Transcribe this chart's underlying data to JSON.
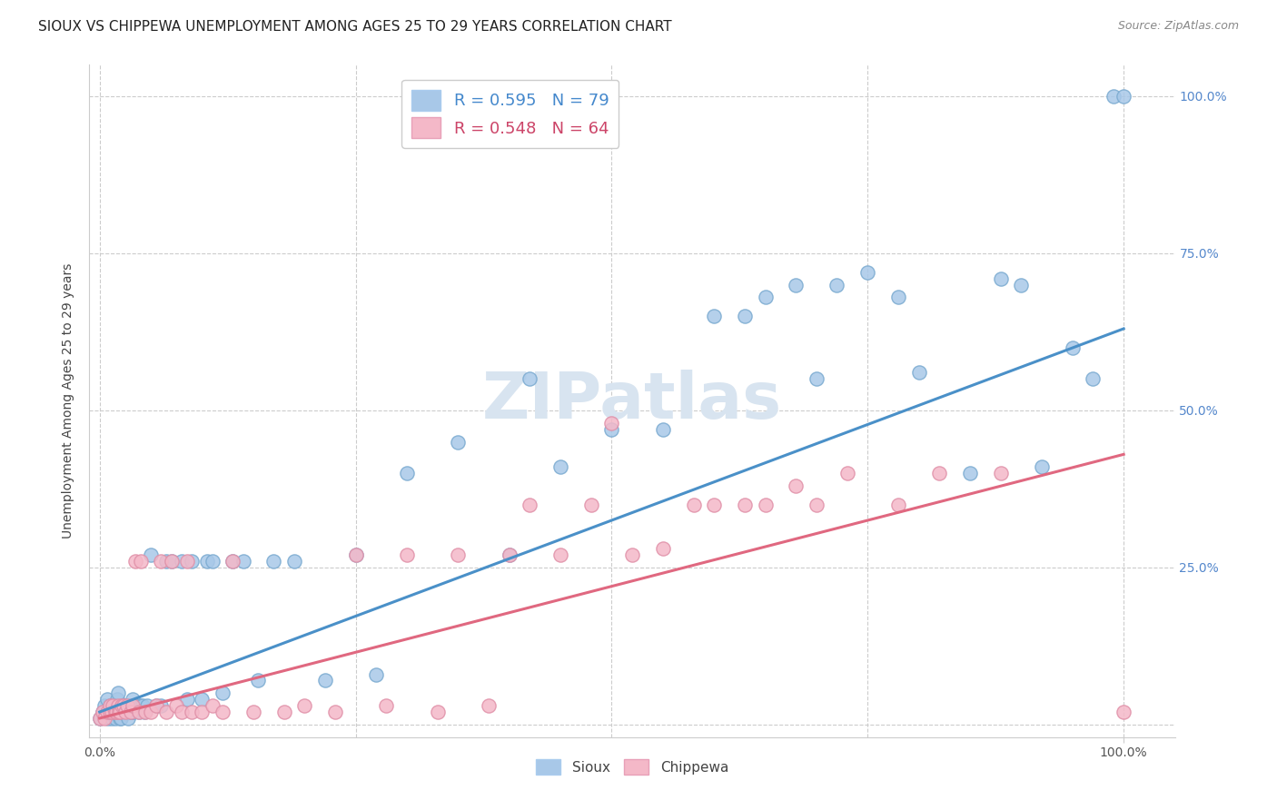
{
  "title": "SIOUX VS CHIPPEWA UNEMPLOYMENT AMONG AGES 25 TO 29 YEARS CORRELATION CHART",
  "source": "Source: ZipAtlas.com",
  "ylabel": "Unemployment Among Ages 25 to 29 years",
  "sioux_color": "#a8c8e8",
  "sioux_edge": "#7aaad0",
  "sioux_line": "#4a90c8",
  "chippewa_color": "#f4b8c8",
  "chippewa_edge": "#e090a8",
  "chippewa_line": "#e06880",
  "sioux_R": 0.595,
  "sioux_N": 79,
  "chippewa_R": 0.548,
  "chippewa_N": 64,
  "legend_sioux_color": "#a8c8e8",
  "legend_chippewa_color": "#f4b8c8",
  "sioux_x": [
    0.0,
    0.003,
    0.005,
    0.007,
    0.008,
    0.01,
    0.01,
    0.012,
    0.013,
    0.015,
    0.015,
    0.016,
    0.017,
    0.018,
    0.02,
    0.02,
    0.021,
    0.022,
    0.023,
    0.024,
    0.025,
    0.026,
    0.027,
    0.028,
    0.03,
    0.03,
    0.031,
    0.032,
    0.033,
    0.035,
    0.038,
    0.04,
    0.042,
    0.044,
    0.046,
    0.05,
    0.055,
    0.06,
    0.065,
    0.07,
    0.08,
    0.085,
    0.09,
    0.1,
    0.105,
    0.11,
    0.12,
    0.13,
    0.14,
    0.155,
    0.17,
    0.19,
    0.22,
    0.25,
    0.27,
    0.3,
    0.35,
    0.4,
    0.42,
    0.45,
    0.5,
    0.55,
    0.6,
    0.63,
    0.65,
    0.68,
    0.7,
    0.72,
    0.75,
    0.78,
    0.8,
    0.85,
    0.88,
    0.9,
    0.92,
    0.95,
    0.97,
    0.99,
    1.0
  ],
  "sioux_y": [
    0.01,
    0.02,
    0.03,
    0.04,
    0.01,
    0.02,
    0.03,
    0.01,
    0.02,
    0.01,
    0.02,
    0.03,
    0.04,
    0.05,
    0.01,
    0.02,
    0.01,
    0.02,
    0.03,
    0.02,
    0.03,
    0.02,
    0.03,
    0.01,
    0.02,
    0.03,
    0.02,
    0.04,
    0.02,
    0.03,
    0.02,
    0.03,
    0.03,
    0.02,
    0.03,
    0.27,
    0.03,
    0.03,
    0.26,
    0.26,
    0.26,
    0.04,
    0.26,
    0.04,
    0.26,
    0.26,
    0.05,
    0.26,
    0.26,
    0.07,
    0.26,
    0.26,
    0.07,
    0.27,
    0.08,
    0.4,
    0.45,
    0.27,
    0.55,
    0.41,
    0.47,
    0.47,
    0.65,
    0.65,
    0.68,
    0.7,
    0.55,
    0.7,
    0.72,
    0.68,
    0.56,
    0.4,
    0.71,
    0.7,
    0.41,
    0.6,
    0.55,
    1.0,
    1.0
  ],
  "chippewa_x": [
    0.0,
    0.003,
    0.005,
    0.007,
    0.01,
    0.01,
    0.012,
    0.013,
    0.015,
    0.016,
    0.018,
    0.019,
    0.02,
    0.022,
    0.023,
    0.025,
    0.027,
    0.03,
    0.032,
    0.035,
    0.038,
    0.04,
    0.045,
    0.05,
    0.055,
    0.06,
    0.065,
    0.07,
    0.075,
    0.08,
    0.085,
    0.09,
    0.1,
    0.11,
    0.12,
    0.13,
    0.15,
    0.18,
    0.2,
    0.23,
    0.25,
    0.28,
    0.3,
    0.33,
    0.35,
    0.38,
    0.4,
    0.42,
    0.45,
    0.48,
    0.5,
    0.52,
    0.55,
    0.58,
    0.6,
    0.63,
    0.65,
    0.68,
    0.7,
    0.73,
    0.78,
    0.82,
    0.88,
    1.0
  ],
  "chippewa_y": [
    0.01,
    0.02,
    0.01,
    0.02,
    0.02,
    0.03,
    0.02,
    0.03,
    0.02,
    0.02,
    0.03,
    0.02,
    0.02,
    0.03,
    0.03,
    0.02,
    0.03,
    0.02,
    0.03,
    0.26,
    0.02,
    0.26,
    0.02,
    0.02,
    0.03,
    0.26,
    0.02,
    0.26,
    0.03,
    0.02,
    0.26,
    0.02,
    0.02,
    0.03,
    0.02,
    0.26,
    0.02,
    0.02,
    0.03,
    0.02,
    0.27,
    0.03,
    0.27,
    0.02,
    0.27,
    0.03,
    0.27,
    0.35,
    0.27,
    0.35,
    0.48,
    0.27,
    0.28,
    0.35,
    0.35,
    0.35,
    0.35,
    0.38,
    0.35,
    0.4,
    0.35,
    0.4,
    0.4,
    0.02
  ],
  "sioux_line_x0": 0.0,
  "sioux_line_y0": 0.02,
  "sioux_line_x1": 1.0,
  "sioux_line_y1": 0.63,
  "chippewa_line_x0": 0.0,
  "chippewa_line_y0": 0.01,
  "chippewa_line_x1": 1.0,
  "chippewa_line_y1": 0.43,
  "xlim": [
    -0.01,
    1.05
  ],
  "ylim": [
    -0.02,
    1.05
  ],
  "xticks": [
    0.0,
    1.0
  ],
  "xticklabels": [
    "0.0%",
    "100.0%"
  ],
  "yticks_right": [
    0.25,
    0.5,
    0.75,
    1.0
  ],
  "yticklabels_right": [
    "25.0%",
    "50.0%",
    "75.0%",
    "100.0%"
  ],
  "grid_color": "#cccccc",
  "watermark": "ZIPatlas",
  "watermark_color": "#d8e4f0",
  "bg_color": "#ffffff",
  "title_fontsize": 11,
  "source_fontsize": 9,
  "tick_fontsize": 10,
  "ylabel_fontsize": 10
}
